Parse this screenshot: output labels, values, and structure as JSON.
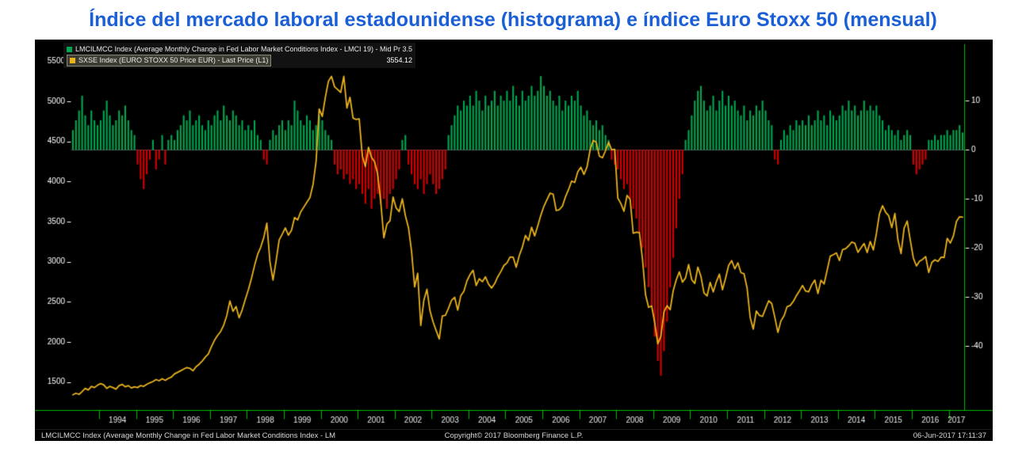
{
  "title": "Índice del mercado laboral estadounidense (histograma) e índice Euro Stoxx 50 (mensual)",
  "legend": {
    "series1_label": "LMCILMCC Index (Average Monthly Change in Fed Labor Market Conditions Index - LMCI 19) - Mid Pr 3.5",
    "series2_label": "SXSE Index (EURO STOXX 50 Price EUR) - Last Price (L1)",
    "series2_value": "3554.12"
  },
  "statusbar": {
    "left": "LMCILMCC Index (Average Monthly Change in Fed Labor Market Conditions Index - LM",
    "center": "Copyright© 2017 Bloomberg Finance L.P.",
    "right": "06-Jun-2017 17:11:37"
  },
  "colors": {
    "title_blue": "#1a5fd6",
    "bar_positive": "#00a550",
    "bar_negative": "#d40000",
    "line_gold": "#eab31c",
    "axis_green": "#00bb00"
  },
  "chart_data": {
    "type": "combo",
    "title": "Índice del mercado laboral estadounidense (histograma) e índice Euro Stoxx 50 (mensual)",
    "background": "#000000",
    "axis_color": "#00bb00",
    "grid": false,
    "x": {
      "frequency": "monthly",
      "start_year": 1993,
      "start_month": 4,
      "end_year": 2017,
      "end_month": 5,
      "tick_years": [
        1994,
        1995,
        1996,
        1997,
        1998,
        1999,
        2000,
        2001,
        2002,
        2003,
        2004,
        2005,
        2006,
        2007,
        2008,
        2009,
        2010,
        2011,
        2012,
        2013,
        2014,
        2015,
        2016,
        2017
      ]
    },
    "left_axis": {
      "label_values": [
        5500,
        5000,
        4500,
        4000,
        3500,
        3000,
        2500,
        2000,
        1500
      ],
      "range": [
        1150,
        5650
      ],
      "series": "SXSE Index"
    },
    "right_axis": {
      "label_values": [
        10,
        0,
        -10,
        -20,
        -30,
        -40
      ],
      "range": [
        -53,
        20.5
      ],
      "series": "LMCILMCC Index"
    },
    "series": [
      {
        "name": "LMCILMCC Index (Average Monthly Change in Fed Labor Market Conditions Index)",
        "type": "bar",
        "axis": "right",
        "color_positive": "#00a550",
        "color_negative": "#d40000",
        "last_value": 3.5,
        "values": [
          4,
          6,
          8,
          11,
          7,
          5,
          8,
          6,
          5,
          6,
          8,
          10,
          7,
          5,
          6,
          8,
          7,
          9,
          6,
          4,
          3,
          -3,
          -6,
          -8,
          -5,
          -2,
          2,
          -4,
          -2,
          3,
          -3,
          2,
          3,
          2,
          4,
          5,
          7,
          6,
          8,
          5,
          6,
          7,
          5,
          4,
          6,
          5,
          7,
          8,
          6,
          9,
          7,
          6,
          8,
          7,
          5,
          6,
          4,
          5,
          4,
          6,
          3,
          2,
          -2,
          -3,
          2,
          4,
          3,
          5,
          6,
          4,
          6,
          5,
          10,
          8,
          6,
          5,
          7,
          6,
          4,
          5,
          7,
          6,
          4,
          3,
          2,
          -3,
          -5,
          -4,
          -6,
          -5,
          -7,
          -6,
          -8,
          -7,
          -9,
          -11,
          -8,
          -12,
          -10,
          -9,
          -11,
          -10,
          -12,
          -9,
          -8,
          -6,
          -4,
          2,
          3,
          -3,
          -5,
          -7,
          -8,
          -6,
          -9,
          -7,
          -5,
          -7,
          -9,
          -8,
          -6,
          -4,
          3,
          5,
          7,
          9,
          8,
          10,
          9,
          11,
          9,
          12,
          10,
          8,
          11,
          9,
          10,
          12,
          9,
          11,
          10,
          12,
          10,
          13,
          11,
          9,
          12,
          10,
          11,
          13,
          11,
          12,
          15,
          13,
          11,
          12,
          10,
          9,
          11,
          8,
          10,
          9,
          11,
          10,
          12,
          9,
          7,
          8,
          6,
          5,
          6,
          4,
          5,
          3,
          2,
          -2,
          -3,
          -4,
          -6,
          -8,
          -7,
          -10,
          -12,
          -14,
          -17,
          -20,
          -24,
          -28,
          -32,
          -38,
          -43,
          -46,
          -41,
          -35,
          -28,
          -22,
          -16,
          -10,
          -5,
          2,
          4,
          7,
          10,
          12,
          13,
          10,
          8,
          9,
          11,
          8,
          10,
          12,
          9,
          11,
          9,
          10,
          8,
          7,
          9,
          6,
          8,
          7,
          9,
          8,
          10,
          8,
          6,
          5,
          -2,
          -3,
          2,
          4,
          3,
          5,
          4,
          6,
          5,
          6,
          5,
          7,
          5,
          6,
          8,
          6,
          7,
          5,
          8,
          7,
          6,
          7,
          9,
          8,
          10,
          8,
          9,
          7,
          8,
          10,
          8,
          9,
          8,
          9,
          7,
          6,
          4,
          5,
          4,
          3,
          4,
          2,
          3,
          4,
          3,
          -3,
          -5,
          -4,
          -3,
          -2,
          2,
          2,
          3,
          2,
          3,
          3,
          4,
          3,
          4,
          4,
          5,
          3.5
        ]
      },
      {
        "name": "SXSE Index (EURO STOXX 50 Price EUR)",
        "type": "line",
        "axis": "left",
        "color": "#eab31c",
        "last_value": 3554.12,
        "values": [
          1340,
          1360,
          1345,
          1380,
          1420,
          1400,
          1445,
          1430,
          1460,
          1480,
          1465,
          1420,
          1445,
          1430,
          1410,
          1455,
          1470,
          1440,
          1455,
          1425,
          1440,
          1430,
          1455,
          1445,
          1470,
          1490,
          1505,
          1530,
          1515,
          1540,
          1520,
          1545,
          1560,
          1600,
          1620,
          1640,
          1660,
          1680,
          1670,
          1640,
          1690,
          1720,
          1760,
          1810,
          1850,
          1940,
          2020,
          2080,
          2130,
          2210,
          2330,
          2510,
          2380,
          2440,
          2300,
          2400,
          2530,
          2650,
          2790,
          2950,
          3090,
          3180,
          3300,
          3480,
          3000,
          2770,
          3010,
          3270,
          3342,
          3420,
          3330,
          3390,
          3550,
          3520,
          3620,
          3680,
          3740,
          3800,
          3960,
          4250,
          4904,
          4810,
          5050,
          5249,
          5310,
          5180,
          5145,
          5110,
          5310,
          4915,
          5050,
          4790,
          4772,
          4780,
          4320,
          4185,
          4426,
          4300,
          4243,
          4090,
          3743,
          3297,
          3468,
          3510,
          3806,
          3670,
          3624,
          3784,
          3573,
          3425,
          3133,
          2685,
          2855,
          2204,
          2519,
          2656,
          2386,
          2248,
          2141,
          2036,
          2324,
          2330,
          2420,
          2519,
          2556,
          2395,
          2575,
          2630,
          2761,
          2839,
          2893,
          2702,
          2787,
          2749,
          2811,
          2720,
          2671,
          2726,
          2811,
          2876,
          2951,
          2984,
          3058,
          3056,
          2930,
          3077,
          3182,
          3327,
          3264,
          3429,
          3320,
          3447,
          3579,
          3691,
          3774,
          3854,
          3840,
          3637,
          3649,
          3692,
          3808,
          3899,
          4005,
          3987,
          4120,
          4178,
          4088,
          4181,
          4392,
          4512,
          4489,
          4316,
          4295,
          4382,
          4489,
          4395,
          4400,
          3792,
          3724,
          3628,
          3825,
          3778,
          3353,
          3367,
          3365,
          3038,
          2591,
          2430,
          2448,
          2236,
          1976,
          2071,
          2375,
          2451,
          2401,
          2638,
          2775,
          2873,
          2744,
          2797,
          2964,
          2776,
          2728,
          2931,
          2816,
          2610,
          2573,
          2742,
          2622,
          2748,
          2844,
          2650,
          2793,
          2954,
          3013,
          2911,
          2985,
          2862,
          2848,
          2670,
          2302,
          2159,
          2385,
          2330,
          2317,
          2417,
          2512,
          2477,
          2306,
          2118,
          2264,
          2325,
          2440,
          2454,
          2504,
          2575,
          2636,
          2703,
          2633,
          2624,
          2712,
          2770,
          2603,
          2768,
          2721,
          2893,
          3068,
          3087,
          3109,
          3014,
          3149,
          3162,
          3198,
          3245,
          3228,
          3116,
          3173,
          3226,
          3113,
          3251,
          3146,
          3351,
          3599,
          3697,
          3615,
          3571,
          3424,
          3601,
          3269,
          3101,
          3418,
          3506,
          3268,
          3045,
          2946,
          3005,
          3028,
          3063,
          2865,
          2991,
          3023,
          3002,
          3055,
          3052,
          3291,
          3231,
          3320,
          3501,
          3560,
          3554.12
        ]
      }
    ]
  }
}
